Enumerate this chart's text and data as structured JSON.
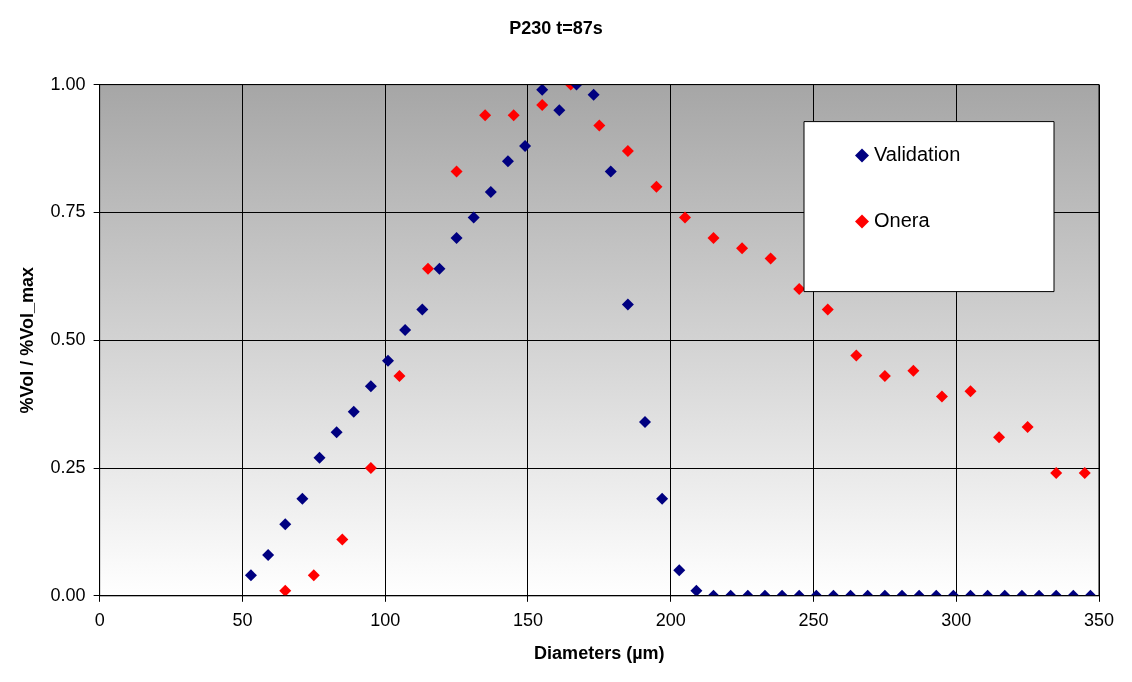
{
  "chart_data": {
    "type": "scatter",
    "title": "P230 t=87s",
    "xlabel": "Diameters (µm)",
    "ylabel": "%Vol / %Vol_max",
    "xlim": [
      0,
      350
    ],
    "xticks": [
      0,
      50,
      100,
      150,
      200,
      250,
      300,
      350
    ],
    "ylim": [
      0,
      1
    ],
    "yticks": [
      {
        "value": 0,
        "label": "0.00"
      },
      {
        "value": 0.25,
        "label": "0.25"
      },
      {
        "value": 0.5,
        "label": "0.50"
      },
      {
        "value": 0.75,
        "label": "0.75"
      },
      {
        "value": 1,
        "label": "1.00"
      }
    ],
    "grid": true,
    "legend": "top right",
    "marker": "diamond",
    "series": [
      {
        "name": "Validation",
        "color": "#000080",
        "x": [
          53,
          59,
          65,
          71,
          77,
          83,
          89,
          95,
          101,
          107,
          113,
          119,
          125,
          131,
          137,
          143,
          149,
          155,
          161,
          167,
          173,
          179,
          185,
          191,
          197,
          203,
          209,
          215,
          221,
          227,
          233,
          239,
          245,
          251,
          257,
          263,
          269,
          275,
          281,
          287,
          293,
          299,
          305,
          311,
          317,
          323,
          329,
          335,
          341,
          347
        ],
        "values": [
          0.04,
          0.08,
          0.14,
          0.19,
          0.27,
          0.32,
          0.36,
          0.41,
          0.46,
          0.52,
          0.56,
          0.64,
          0.7,
          0.74,
          0.79,
          0.85,
          0.88,
          0.99,
          0.95,
          1.0,
          0.98,
          0.83,
          0.57,
          0.34,
          0.19,
          0.05,
          0.01,
          0.0,
          0.0,
          0.0,
          0.0,
          0.0,
          0.0,
          0.0,
          0.0,
          0.0,
          0.0,
          0.0,
          0.0,
          0.0,
          0.0,
          0.0,
          0.0,
          0.0,
          0.0,
          0.0,
          0.0,
          0.0,
          0.0,
          0.0
        ]
      },
      {
        "name": "Onera",
        "color": "#ff0000",
        "x": [
          65,
          75,
          85,
          95,
          105,
          115,
          125,
          135,
          145,
          155,
          165,
          175,
          185,
          195,
          205,
          215,
          225,
          235,
          245,
          255,
          265,
          275,
          285,
          295,
          305,
          315,
          325,
          335,
          345
        ],
        "values": [
          0.01,
          0.04,
          0.11,
          0.25,
          0.43,
          0.64,
          0.83,
          0.94,
          0.94,
          0.96,
          1.0,
          0.92,
          0.87,
          0.8,
          0.74,
          0.7,
          0.68,
          0.66,
          0.6,
          0.56,
          0.47,
          0.43,
          0.44,
          0.39,
          0.4,
          0.31,
          0.33,
          0.24,
          0.24
        ]
      }
    ]
  }
}
